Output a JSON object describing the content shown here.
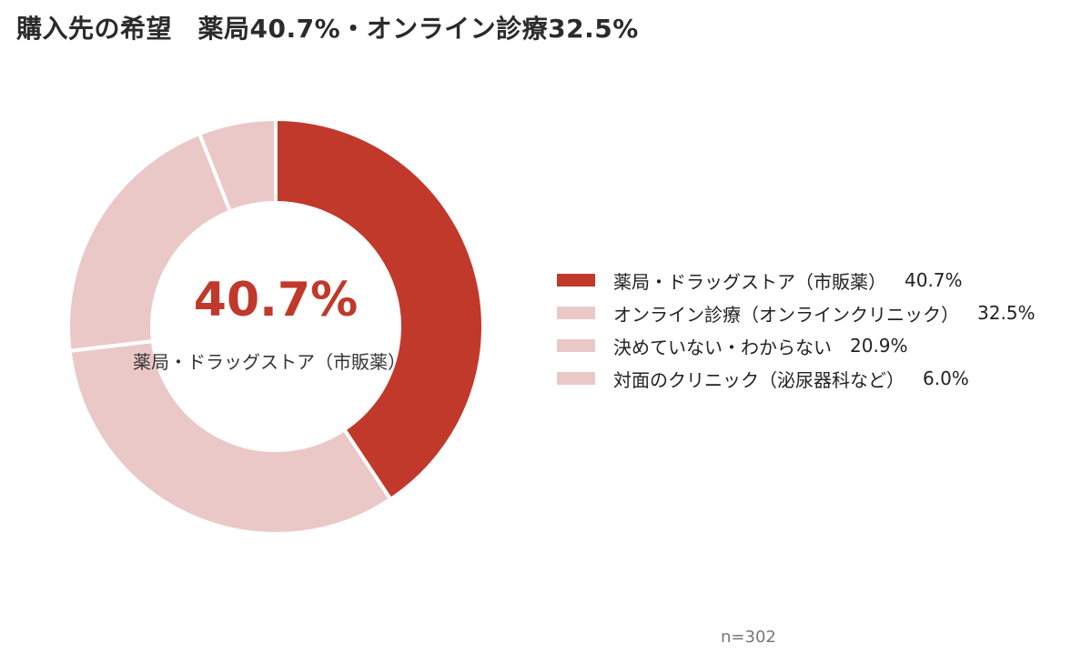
{
  "title": "購入先の希望　薬局40.7%・オンライン診療32.5%",
  "note": "n=302",
  "center": {
    "value": "40.7%",
    "label": "薬局・ドラッグストア（市販薬）",
    "value_color": "#c0392b"
  },
  "legend": [
    {
      "label": "薬局・ドラッグストア（市販薬）",
      "value": "40.7%"
    },
    {
      "label": "オンライン診療（オンラインクリニック）",
      "value": "32.5%"
    },
    {
      "label": "決めていない・わからない",
      "value": "20.9%"
    },
    {
      "label": "対面のクリニック（泌尿器科など）",
      "value": "6.0%"
    }
  ],
  "chart_data": {
    "type": "pie",
    "subtype": "donut",
    "title": "購入先の希望　薬局40.7%・オンライン診療32.5%",
    "categories": [
      "薬局・ドラッグストア（市販薬）",
      "オンライン診療（オンラインクリニック）",
      "決めていない・わからない",
      "対面のクリニック（泌尿器科など）"
    ],
    "values": [
      40.7,
      32.5,
      20.9,
      6.0
    ],
    "unit": "%",
    "colors": [
      "#c0392b",
      "#ebc8c8",
      "#ebc8c8",
      "#ebc8c8"
    ],
    "legend_position": "right",
    "n": 302
  }
}
